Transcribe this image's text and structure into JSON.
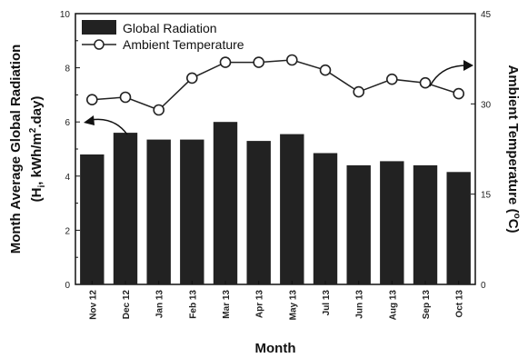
{
  "chart_data": {
    "type": "bar",
    "categories": [
      "Nov 12",
      "Dec 12",
      "Jan 13",
      "Feb 13",
      "Mar 13",
      "Apr 13",
      "May 13",
      "Jul 13",
      "Jun 13",
      "Aug 13",
      "Sep 13",
      "Oct 13"
    ],
    "series": [
      {
        "name": "Global Radiation",
        "type": "bar",
        "axis": "left",
        "color": "#222222",
        "values": [
          4.8,
          5.6,
          5.35,
          5.35,
          6.0,
          5.3,
          5.55,
          4.85,
          4.4,
          4.55,
          4.4,
          4.15
        ]
      },
      {
        "name": "Ambient Temperature",
        "type": "line",
        "axis": "right",
        "marker": "open-circle",
        "color": "#222222",
        "values": [
          30.7,
          31.1,
          29.0,
          34.3,
          36.9,
          36.9,
          37.3,
          35.6,
          32.0,
          34.1,
          33.5,
          31.7
        ]
      }
    ],
    "xlabel": "Month",
    "ylabel_left": [
      "Month Average Global Radiation",
      "(H",
      "i",
      ", kWh/m",
      "2",
      ".day)"
    ],
    "ylabel_right": [
      "Ambient Temperature  (",
      "o",
      "C)"
    ],
    "ylim_left": [
      0,
      10
    ],
    "yticks_left": [
      0,
      2,
      4,
      6,
      8,
      10
    ],
    "ylim_right": [
      0,
      45
    ],
    "yticks_right": [
      0,
      15,
      30,
      45
    ],
    "grid": false,
    "legend_position": "top-left"
  }
}
